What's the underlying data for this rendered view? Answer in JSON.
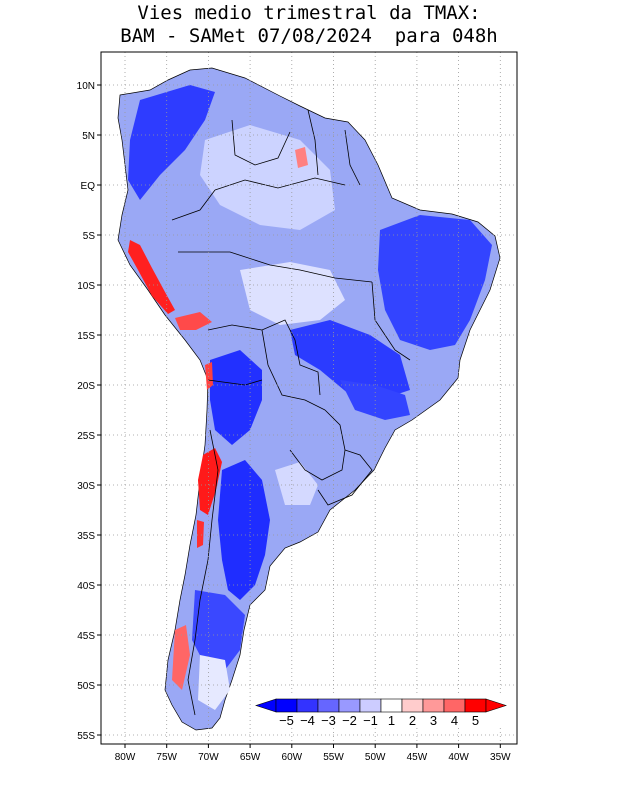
{
  "title": {
    "line1": "Vies medio trimestral da TMAX:",
    "line2": "BAM - SAMet 07/08/2024  para 048h"
  },
  "map": {
    "lat_labels": [
      "10N",
      "5N",
      "EQ",
      "5S",
      "10S",
      "15S",
      "20S",
      "25S",
      "30S",
      "35S",
      "40S",
      "45S",
      "50S",
      "55S"
    ],
    "lon_labels": [
      "80W",
      "75W",
      "70W",
      "65W",
      "60W",
      "55W",
      "50W",
      "45W",
      "40W",
      "35W"
    ],
    "grid": true,
    "frame_color": "#000000",
    "land_background": "#ffffff"
  },
  "colorbar": {
    "labels": [
      "-5",
      "-4",
      "-3",
      "-2",
      "-1",
      "1",
      "2",
      "3",
      "4",
      "5"
    ],
    "colors": [
      "#0000ff",
      "#3333ff",
      "#6666ff",
      "#9999ff",
      "#ccccff",
      "#ffffff",
      "#ffcccc",
      "#ff9999",
      "#ff6666",
      "#ff0000"
    ],
    "under_color": "#0000ff",
    "over_color": "#ff0000"
  }
}
